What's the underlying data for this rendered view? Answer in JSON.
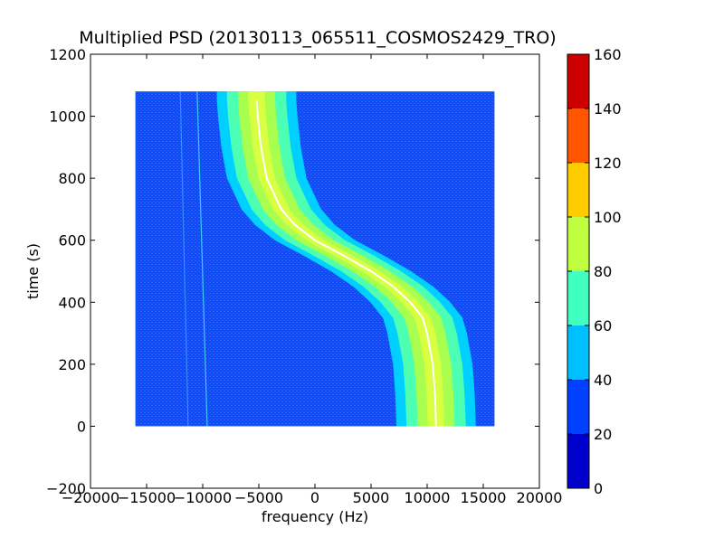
{
  "chart_data": {
    "type": "heatmap",
    "title": "Multiplied PSD (20130113_065511_COSMOS2429_TRO)",
    "xlabel": "frequency (Hz)",
    "ylabel": "time (s)",
    "xlim": [
      -20000,
      20000
    ],
    "ylim": [
      -200,
      1200
    ],
    "x_ticks": [
      -20000,
      -15000,
      -10000,
      -5000,
      0,
      5000,
      10000,
      15000,
      20000
    ],
    "x_tick_labels": [
      "−20000",
      "−15000",
      "−10000",
      "−5000",
      "0",
      "5000",
      "10000",
      "15000",
      "20000"
    ],
    "y_ticks": [
      -200,
      0,
      200,
      400,
      600,
      800,
      1000,
      1200
    ],
    "y_tick_labels": [
      "−200",
      "0",
      "200",
      "400",
      "600",
      "800",
      "1000",
      "1200"
    ],
    "data_extent": {
      "x": [
        -16000,
        16000
      ],
      "y": [
        0,
        1080
      ]
    },
    "background_level": 25,
    "signal_track": [
      {
        "t": 1050,
        "f": -5200
      },
      {
        "t": 1000,
        "f": -5100
      },
      {
        "t": 900,
        "f": -4800
      },
      {
        "t": 800,
        "f": -4300
      },
      {
        "t": 700,
        "f": -3000
      },
      {
        "t": 650,
        "f": -1800
      },
      {
        "t": 600,
        "f": 0
      },
      {
        "t": 550,
        "f": 2600
      },
      {
        "t": 500,
        "f": 5000
      },
      {
        "t": 450,
        "f": 7000
      },
      {
        "t": 400,
        "f": 8500
      },
      {
        "t": 350,
        "f": 9600
      },
      {
        "t": 300,
        "f": 10000
      },
      {
        "t": 200,
        "f": 10500
      },
      {
        "t": 100,
        "f": 10700
      },
      {
        "t": 0,
        "f": 10800
      }
    ],
    "band_half_widths": [
      {
        "level": 35,
        "half_width_hz": 3500
      },
      {
        "level": 55,
        "half_width_hz": 2600
      },
      {
        "level": 75,
        "half_width_hz": 1600
      },
      {
        "level": 90,
        "half_width_hz": 700
      }
    ],
    "faint_lines": [
      {
        "f_top": -10500,
        "f_bottom": -9600,
        "level": 50
      },
      {
        "f_top": -12000,
        "f_bottom": -11300,
        "level": 30
      }
    ],
    "colorbar": {
      "min": 0,
      "max": 160,
      "ticks": [
        0,
        20,
        40,
        60,
        80,
        100,
        120,
        140,
        160
      ],
      "colors": [
        "#0000cd",
        "#0040ff",
        "#00bfff",
        "#40ffbf",
        "#bfff40",
        "#ffcc00",
        "#ff5500",
        "#cc0000"
      ]
    },
    "colors": {
      "background": "#0a4cff",
      "level35": "#00d0ff",
      "level55": "#4dffb3",
      "level75": "#a8ff50",
      "level90": "#d8ff40",
      "ridge": "#ffffff",
      "dither": "#6a6af0"
    }
  }
}
